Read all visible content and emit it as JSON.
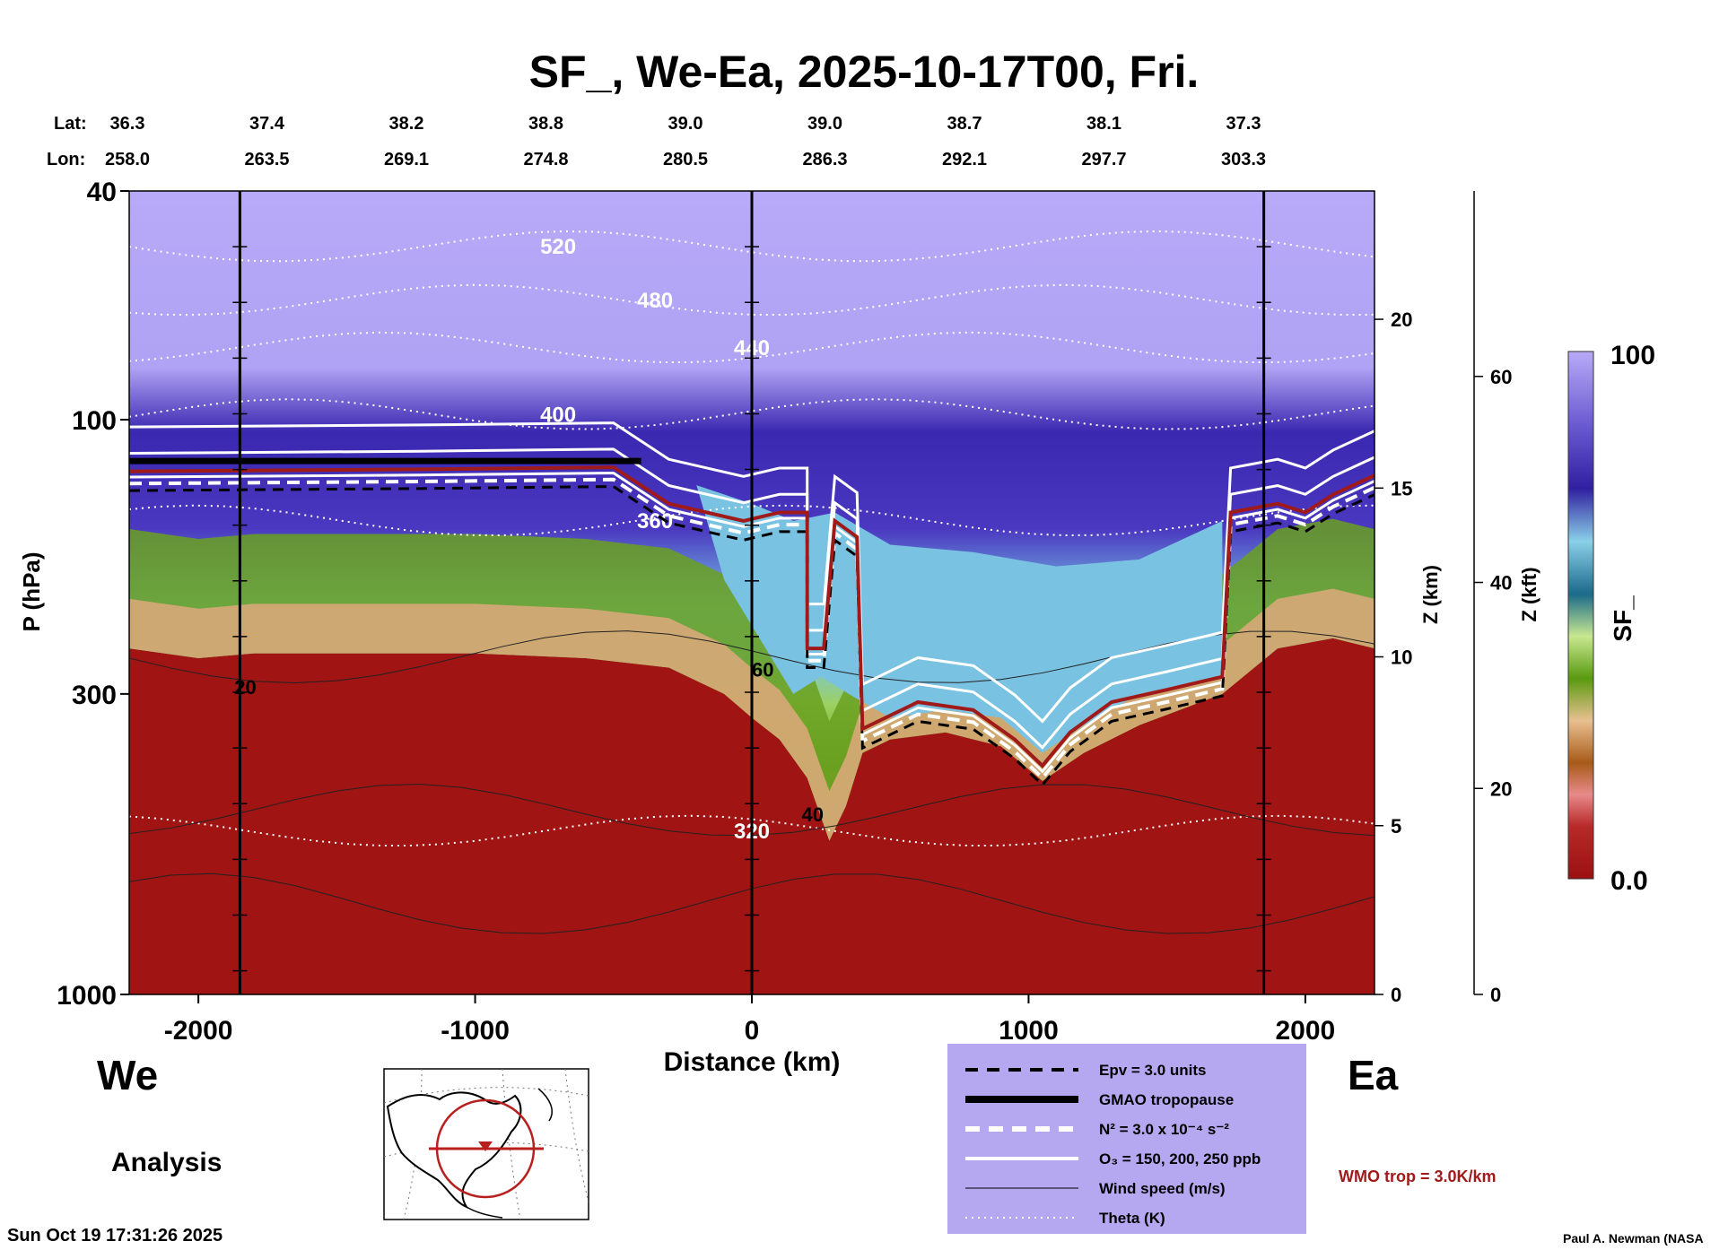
{
  "chart_data": {
    "type": "heatmap",
    "title": "SF_, We-Ea, 2025-10-17T00, Fri.",
    "xlabel": "Distance (km)",
    "ylabel": "P (hPa)",
    "z_label": "Z (km)",
    "zf_label": "Z (kft)",
    "colorbar_label": "SF_",
    "xlim": [
      -2250,
      2250
    ],
    "ylim": [
      1000,
      40
    ],
    "y_scale": "log",
    "x_ticks": [
      {
        "value": -2000,
        "label": "-2000"
      },
      {
        "value": -1000,
        "label": "-1000"
      },
      {
        "value": 0,
        "label": "0"
      },
      {
        "value": 1000,
        "label": "1000"
      },
      {
        "value": 2000,
        "label": "2000"
      }
    ],
    "p_ticks": [
      {
        "value": 40,
        "label": "40"
      },
      {
        "value": 100,
        "label": "100"
      },
      {
        "value": 300,
        "label": "300"
      },
      {
        "value": 1000,
        "label": "1000"
      }
    ],
    "z_ticks": [
      {
        "value": 20,
        "label": "20"
      },
      {
        "value": 15,
        "label": "15"
      },
      {
        "value": 10,
        "label": "10"
      },
      {
        "value": 5,
        "label": "5"
      },
      {
        "value": 0,
        "label": "0"
      }
    ],
    "zf_ticks": [
      {
        "value": 60,
        "label": "60"
      },
      {
        "value": 40,
        "label": "40"
      },
      {
        "value": 20,
        "label": "20"
      },
      {
        "value": 0,
        "label": "0"
      }
    ],
    "colorbar": {
      "min_label": "0.0",
      "max_label": "100",
      "min": 0,
      "max": 100
    },
    "lat_label": "Lat:",
    "lon_label": "Lon:",
    "latlon": [
      {
        "lat": "36.3",
        "lon": "258.0"
      },
      {
        "lat": "37.4",
        "lon": "263.5"
      },
      {
        "lat": "38.2",
        "lon": "269.1"
      },
      {
        "lat": "38.8",
        "lon": "274.8"
      },
      {
        "lat": "39.0",
        "lon": "280.5"
      },
      {
        "lat": "39.0",
        "lon": "286.3"
      },
      {
        "lat": "38.7",
        "lon": "292.1"
      },
      {
        "lat": "38.1",
        "lon": "297.7"
      },
      {
        "lat": "37.3",
        "lon": "303.3"
      }
    ],
    "vertical_lines_km": [
      -1850,
      0,
      1850
    ],
    "theta_levels": [
      {
        "value": 520,
        "label": "520"
      },
      {
        "value": 480,
        "label": "480"
      },
      {
        "value": 440,
        "label": "440"
      },
      {
        "value": 400,
        "label": "400"
      },
      {
        "value": 360,
        "label": "360"
      },
      {
        "value": 320,
        "label": "320"
      }
    ],
    "wind_labels": [
      "20",
      "40",
      "60"
    ],
    "tropopause_gmao_hpa": [
      {
        "x": -2250,
        "p": 118
      },
      {
        "x": -1500,
        "p": 118
      },
      {
        "x": -1000,
        "p": 118
      },
      {
        "x": -400,
        "p": 118
      }
    ],
    "tropopause_wmo_hpa": [
      {
        "x": -2250,
        "p": 123
      },
      {
        "x": -1200,
        "p": 122
      },
      {
        "x": -500,
        "p": 121
      },
      {
        "x": -300,
        "p": 140
      },
      {
        "x": -30,
        "p": 150
      },
      {
        "x": 100,
        "p": 145
      },
      {
        "x": 200,
        "p": 145
      },
      {
        "x": 200,
        "p": 250
      },
      {
        "x": 260,
        "p": 250
      },
      {
        "x": 300,
        "p": 150
      },
      {
        "x": 380,
        "p": 160
      },
      {
        "x": 400,
        "p": 345
      },
      {
        "x": 600,
        "p": 310
      },
      {
        "x": 800,
        "p": 320
      },
      {
        "x": 950,
        "p": 360
      },
      {
        "x": 1050,
        "p": 400
      },
      {
        "x": 1150,
        "p": 350
      },
      {
        "x": 1300,
        "p": 310
      },
      {
        "x": 1500,
        "p": 295
      },
      {
        "x": 1700,
        "p": 280
      },
      {
        "x": 1730,
        "p": 145
      },
      {
        "x": 1900,
        "p": 140
      },
      {
        "x": 2000,
        "p": 145
      },
      {
        "x": 2100,
        "p": 135
      },
      {
        "x": 2250,
        "p": 125
      }
    ],
    "cross_section_profile_hpa": [
      {
        "x": -2250,
        "p": 250
      },
      {
        "x": -2000,
        "p": 260
      },
      {
        "x": -1800,
        "p": 255
      },
      {
        "x": -1400,
        "p": 255
      },
      {
        "x": -1000,
        "p": 255
      },
      {
        "x": -600,
        "p": 260
      },
      {
        "x": -300,
        "p": 270
      },
      {
        "x": -100,
        "p": 300
      },
      {
        "x": 0,
        "p": 330
      },
      {
        "x": 100,
        "p": 360
      },
      {
        "x": 200,
        "p": 420
      },
      {
        "x": 280,
        "p": 540
      },
      {
        "x": 340,
        "p": 470
      },
      {
        "x": 400,
        "p": 380
      },
      {
        "x": 500,
        "p": 360
      },
      {
        "x": 700,
        "p": 350
      },
      {
        "x": 900,
        "p": 370
      },
      {
        "x": 1050,
        "p": 425
      },
      {
        "x": 1200,
        "p": 380
      },
      {
        "x": 1400,
        "p": 340
      },
      {
        "x": 1700,
        "p": 300
      },
      {
        "x": 1900,
        "p": 250
      },
      {
        "x": 2100,
        "p": 240
      },
      {
        "x": 2250,
        "p": 250
      }
    ]
  },
  "labels": {
    "west": "We",
    "east": "Ea",
    "analysis": "Analysis",
    "timestamp": "Sun Oct 19 17:31:26 2025",
    "credit": "Paul A. Newman (NASA",
    "wmo_note": "WMO trop = 3.0K/km"
  },
  "legend": {
    "items": [
      {
        "label": "Epv = 3.0 units",
        "style": "dash-black"
      },
      {
        "label": "GMAO tropopause",
        "style": "thick-black"
      },
      {
        "label": "N² = 3.0 x 10⁻⁴ s⁻²",
        "style": "dash-white"
      },
      {
        "label": "O₃ = 150, 200, 250 ppb",
        "style": "solid-white"
      },
      {
        "label": "Wind speed (m/s)",
        "style": "thin-black"
      },
      {
        "label": "Theta (K)",
        "style": "dotted-white"
      }
    ],
    "background": "#b5a8f0"
  },
  "colors": {
    "troposphere": "#a01414",
    "stratosphere": "#b8aaf8",
    "wmo_line": "#a01a1a",
    "legend_bg": "#b5a8f0"
  }
}
